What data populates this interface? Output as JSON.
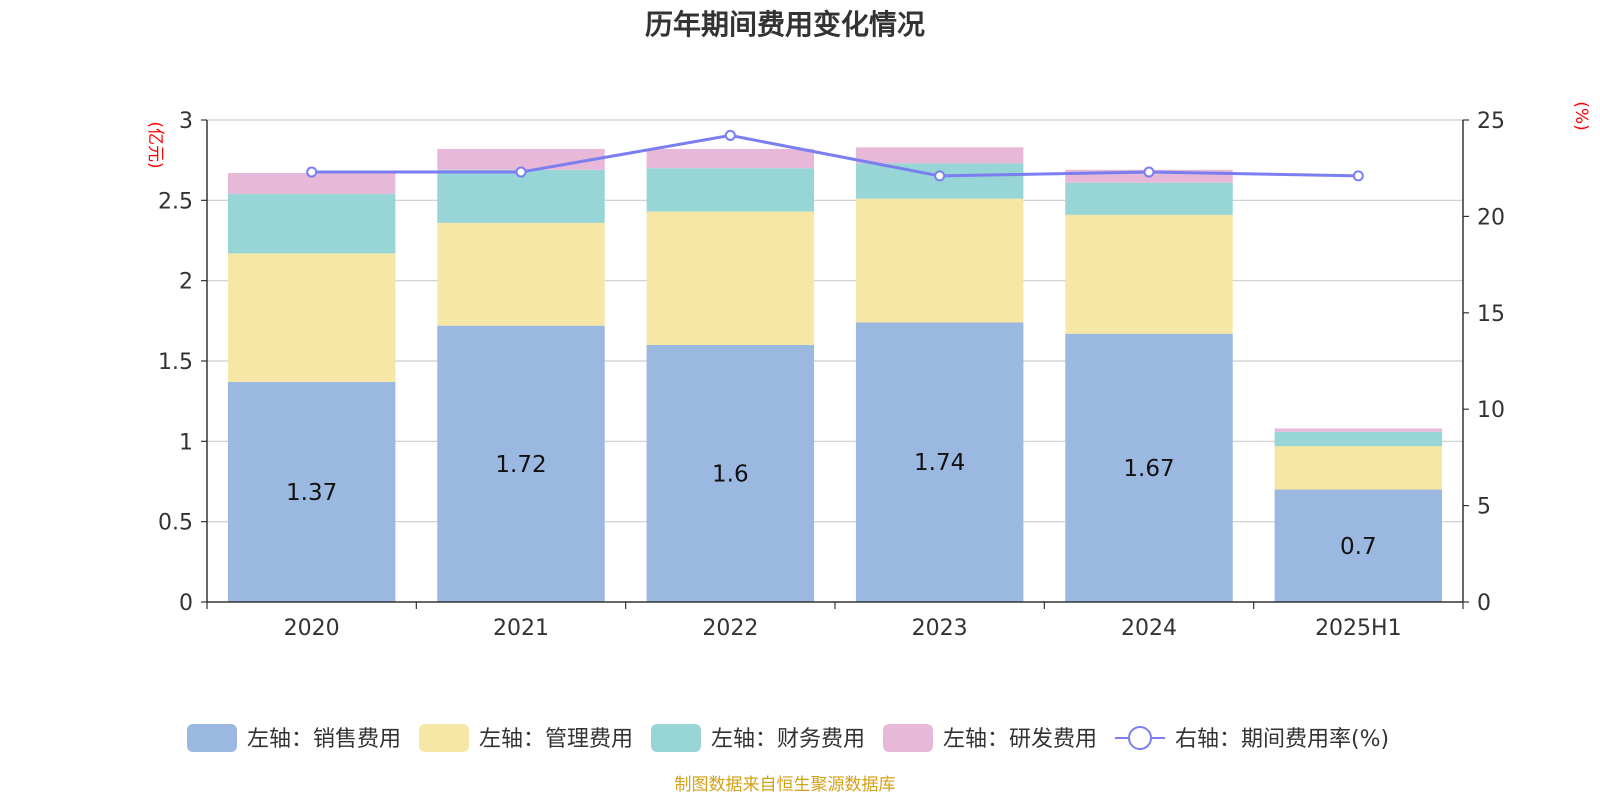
{
  "chart_data": {
    "type": "bar",
    "title": "历年期间费用变化情况",
    "categories": [
      "2020",
      "2021",
      "2022",
      "2023",
      "2024",
      "2025H1"
    ],
    "left_axis": {
      "unit": "(亿元)",
      "ylim": [
        0,
        3
      ],
      "ticks": [
        "0",
        "0.5",
        "1",
        "1.5",
        "2",
        "2.5",
        "3"
      ]
    },
    "right_axis": {
      "unit": "(%)",
      "ylim": [
        0,
        25
      ],
      "ticks": [
        "0",
        "5",
        "10",
        "15",
        "20",
        "25"
      ]
    },
    "grid": true,
    "legend_position": "bottom",
    "series": [
      {
        "name": "左轴：销售费用",
        "type": "bar",
        "axis": "left",
        "color": "#9bb8e1",
        "values": [
          1.37,
          1.72,
          1.6,
          1.74,
          1.67,
          0.7
        ],
        "labels": [
          "1.37",
          "1.72",
          "1.6",
          "1.74",
          "1.67",
          "0.7"
        ]
      },
      {
        "name": "左轴：管理费用",
        "type": "bar",
        "axis": "left",
        "color": "#f7e7a6",
        "values": [
          0.8,
          0.64,
          0.83,
          0.77,
          0.74,
          0.27
        ]
      },
      {
        "name": "左轴：财务费用",
        "type": "bar",
        "axis": "left",
        "color": "#97d5d6",
        "values": [
          0.37,
          0.33,
          0.27,
          0.22,
          0.2,
          0.09
        ]
      },
      {
        "name": "左轴：研发费用",
        "type": "bar",
        "axis": "left",
        "color": "#e8b8d8",
        "values": [
          0.13,
          0.13,
          0.12,
          0.1,
          0.08,
          0.02
        ]
      },
      {
        "name": "右轴：期间费用率(%)",
        "type": "line",
        "axis": "right",
        "color": "#7b7ef0",
        "values": [
          22.3,
          22.3,
          24.2,
          22.1,
          22.3,
          22.1
        ]
      }
    ]
  },
  "footer": {
    "source": "制图数据来自恒生聚源数据库"
  }
}
